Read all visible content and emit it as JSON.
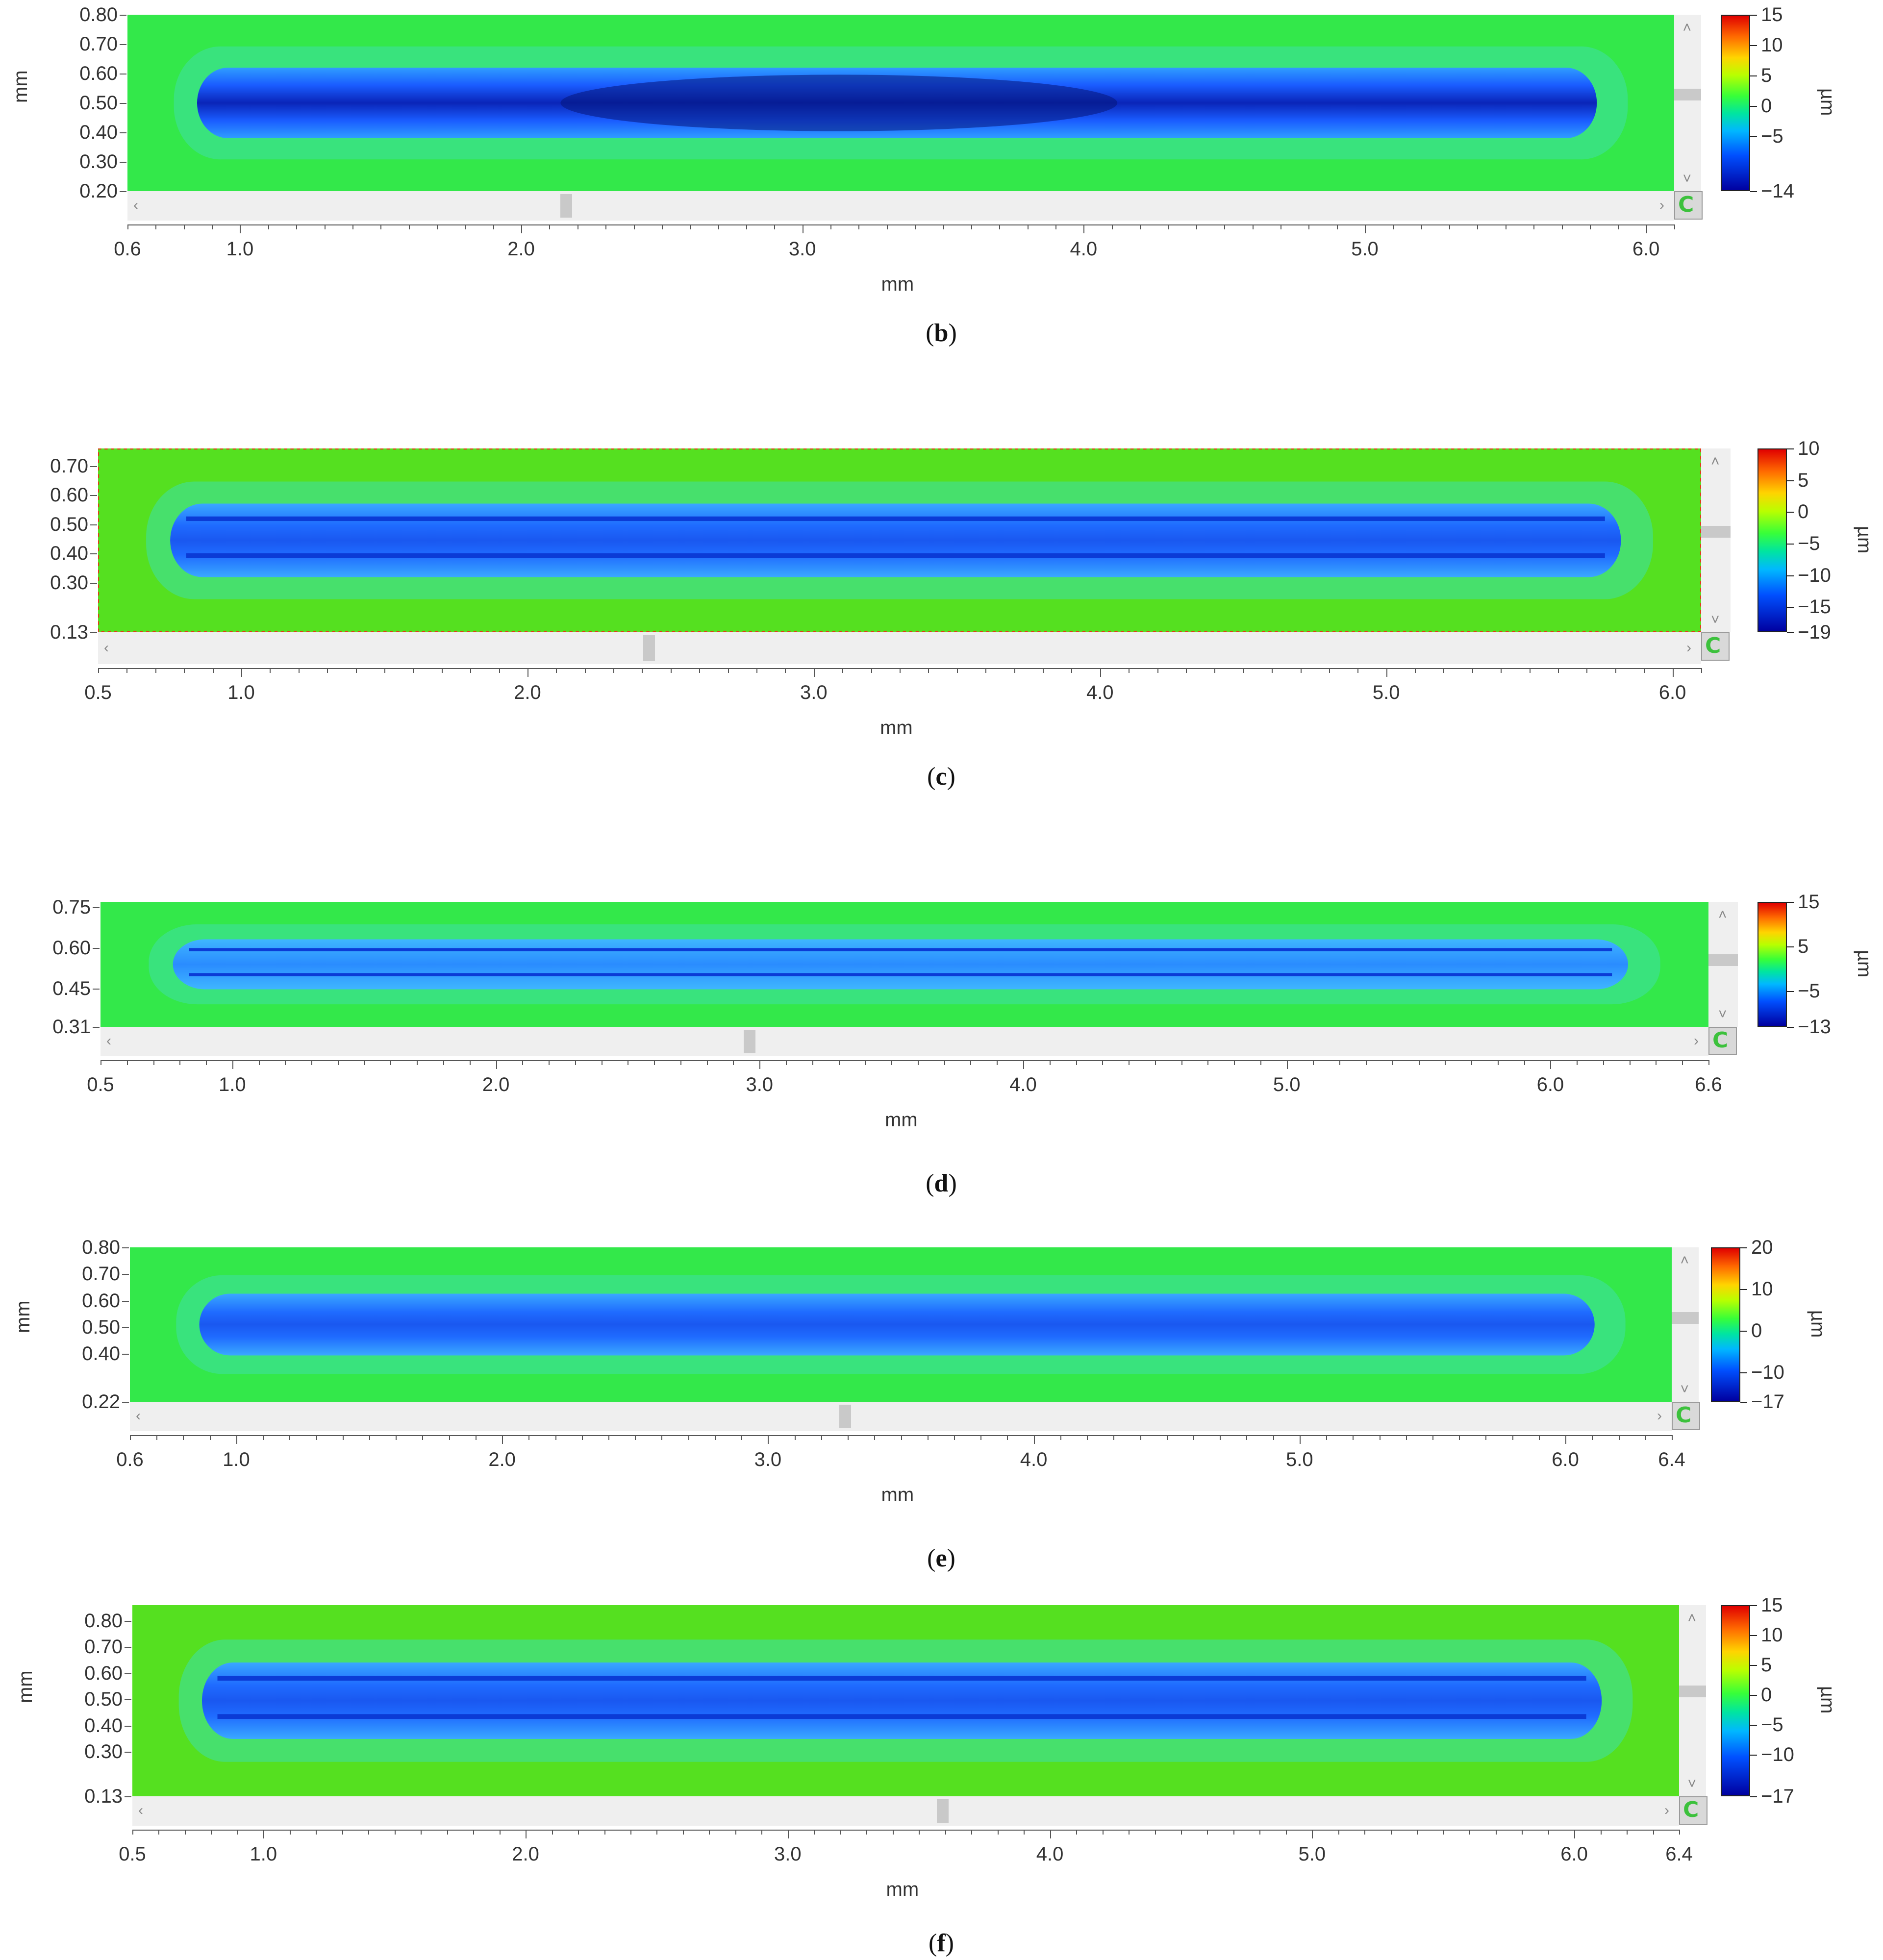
{
  "panels": [
    {
      "id": "b",
      "caption": "b",
      "y_unit": "mm",
      "x_unit": "mm",
      "z_unit": "µm",
      "y_ticks": [
        "0.80",
        "0.70",
        "0.60",
        "0.50",
        "0.40",
        "0.30",
        "0.20"
      ],
      "x_ticks": [
        "0.6",
        "1.0",
        "2.0",
        "3.0",
        "4.0",
        "5.0",
        "6.0"
      ],
      "cb_ticks": [
        "15",
        "10",
        "5",
        "0",
        "−5",
        "−14"
      ],
      "track_style": "single-deep"
    },
    {
      "id": "c",
      "caption": "c",
      "y_unit": "mm",
      "x_unit": "mm",
      "z_unit": "µm",
      "y_ticks": [
        "0.70",
        "0.60",
        "0.50",
        "0.40",
        "0.30",
        "0.13"
      ],
      "x_ticks": [
        "0.5",
        "1.0",
        "2.0",
        "3.0",
        "4.0",
        "5.0",
        "6.0"
      ],
      "cb_ticks": [
        "10",
        "5",
        "0",
        "−5",
        "−10",
        "−15",
        "−19"
      ],
      "track_style": "double-line"
    },
    {
      "id": "d",
      "caption": "d",
      "y_unit": "mm",
      "x_unit": "mm",
      "z_unit": "µm",
      "y_ticks": [
        "0.75",
        "0.60",
        "0.45",
        "0.31"
      ],
      "x_ticks": [
        "0.5",
        "1.0",
        "2.0",
        "3.0",
        "4.0",
        "5.0",
        "6.0",
        "6.6"
      ],
      "cb_ticks": [
        "15",
        "5",
        "−5",
        "−13"
      ],
      "track_style": "thin-lines"
    },
    {
      "id": "e",
      "caption": "e",
      "y_unit": "mm",
      "x_unit": "mm",
      "z_unit": "µm",
      "y_ticks": [
        "0.80",
        "0.70",
        "0.60",
        "0.50",
        "0.40",
        "0.22"
      ],
      "x_ticks": [
        "0.6",
        "1.0",
        "2.0",
        "3.0",
        "4.0",
        "5.0",
        "6.0",
        "6.4"
      ],
      "cb_ticks": [
        "20",
        "10",
        "0",
        "−10",
        "−17"
      ],
      "track_style": "single-soft"
    },
    {
      "id": "f",
      "caption": "f",
      "y_unit": "mm",
      "x_unit": "mm",
      "z_unit": "µm",
      "y_ticks": [
        "0.80",
        "0.70",
        "0.60",
        "0.50",
        "0.40",
        "0.30",
        "0.13"
      ],
      "x_ticks": [
        "0.5",
        "1.0",
        "2.0",
        "3.0",
        "4.0",
        "5.0",
        "6.0",
        "6.4"
      ],
      "cb_ticks": [
        "15",
        "10",
        "5",
        "0",
        "−5",
        "−10",
        "−17"
      ],
      "track_style": "double-line"
    }
  ],
  "colors": {
    "background_green": "#33e84a",
    "track_blue": "#1f6bff",
    "track_deep": "#0a2fd0",
    "scrollbar": "#efefef",
    "thumb": "#c9c9c9",
    "reset_icon": "#3cc13c"
  },
  "chart_data": [
    {
      "type": "heatmap",
      "title": "",
      "xlabel": "mm",
      "ylabel": "mm",
      "colorbar_label": "µm",
      "xlim": [
        0.6,
        6.1
      ],
      "ylim": [
        0.2,
        0.8
      ],
      "zlim": [
        -14,
        15
      ],
      "x_ticks": [
        0.6,
        1.0,
        2.0,
        3.0,
        4.0,
        5.0,
        6.0
      ],
      "y_ticks": [
        0.8,
        0.7,
        0.6,
        0.5,
        0.4,
        0.3,
        0.2
      ],
      "colorbar_ticks": [
        15,
        10,
        5,
        0,
        -5,
        -14
      ]
    },
    {
      "type": "heatmap",
      "title": "",
      "xlabel": "mm",
      "ylabel": "mm",
      "colorbar_label": "µm",
      "xlim": [
        0.5,
        6.1
      ],
      "ylim": [
        0.13,
        0.76
      ],
      "zlim": [
        -19,
        10
      ],
      "x_ticks": [
        0.5,
        1.0,
        2.0,
        3.0,
        4.0,
        5.0,
        6.0
      ],
      "y_ticks": [
        0.7,
        0.6,
        0.5,
        0.4,
        0.3,
        0.13
      ],
      "colorbar_ticks": [
        10,
        5,
        0,
        -5,
        -10,
        -15,
        -19
      ]
    },
    {
      "type": "heatmap",
      "title": "",
      "xlabel": "mm",
      "ylabel": "mm",
      "colorbar_label": "µm",
      "xlim": [
        0.5,
        6.6
      ],
      "ylim": [
        0.31,
        0.77
      ],
      "zlim": [
        -13,
        15
      ],
      "x_ticks": [
        0.5,
        1.0,
        2.0,
        3.0,
        4.0,
        5.0,
        6.0,
        6.6
      ],
      "y_ticks": [
        0.75,
        0.6,
        0.45,
        0.31
      ],
      "colorbar_ticks": [
        15,
        5,
        -5,
        -13
      ]
    },
    {
      "type": "heatmap",
      "title": "",
      "xlabel": "mm",
      "ylabel": "mm",
      "colorbar_label": "µm",
      "xlim": [
        0.6,
        6.4
      ],
      "ylim": [
        0.22,
        0.8
      ],
      "zlim": [
        -17,
        20
      ],
      "x_ticks": [
        0.6,
        1.0,
        2.0,
        3.0,
        4.0,
        5.0,
        6.0,
        6.4
      ],
      "y_ticks": [
        0.8,
        0.7,
        0.6,
        0.5,
        0.4,
        0.22
      ],
      "colorbar_ticks": [
        20,
        10,
        0,
        -10,
        -17
      ]
    },
    {
      "type": "heatmap",
      "title": "",
      "xlabel": "mm",
      "ylabel": "mm",
      "colorbar_label": "µm",
      "xlim": [
        0.5,
        6.4
      ],
      "ylim": [
        0.13,
        0.86
      ],
      "zlim": [
        -17,
        15
      ],
      "x_ticks": [
        0.5,
        1.0,
        2.0,
        3.0,
        4.0,
        5.0,
        6.0,
        6.4
      ],
      "y_ticks": [
        0.8,
        0.7,
        0.6,
        0.5,
        0.4,
        0.3,
        0.13
      ],
      "colorbar_ticks": [
        15,
        10,
        5,
        0,
        -5,
        -10,
        -17
      ]
    }
  ]
}
